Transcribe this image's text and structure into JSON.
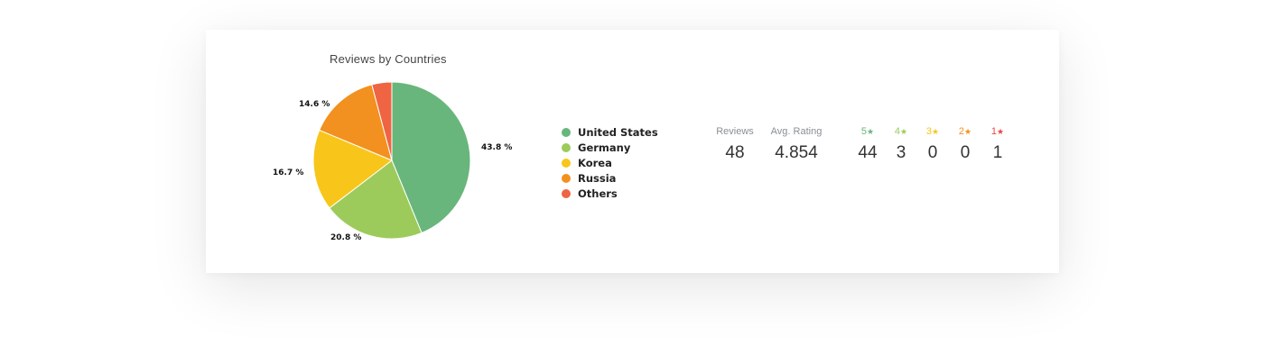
{
  "chart_data": {
    "type": "pie",
    "title": "Reviews by Countries",
    "slices": [
      {
        "name": "United States",
        "value": 43.8,
        "label": "43.8 %",
        "color": "#68b67b"
      },
      {
        "name": "Germany",
        "value": 20.8,
        "label": "20.8 %",
        "color": "#9ccb5b"
      },
      {
        "name": "Korea",
        "value": 16.7,
        "label": "16.7 %",
        "color": "#f8c61a"
      },
      {
        "name": "Russia",
        "value": 14.6,
        "label": "14.6 %",
        "color": "#f2911f"
      },
      {
        "name": "Others",
        "value": 4.1,
        "label": "",
        "color": "#ef6443"
      }
    ],
    "legend_placement": "right"
  },
  "stats": {
    "reviews": {
      "label": "Reviews",
      "value": "48"
    },
    "avg_rating": {
      "label": "Avg. Rating",
      "value": "4.854"
    },
    "star_breakdown": [
      {
        "label": "5",
        "value": "44",
        "color": "#68b67b"
      },
      {
        "label": "4",
        "value": "3",
        "color": "#9ccb5b"
      },
      {
        "label": "3",
        "value": "0",
        "color": "#f8c61a"
      },
      {
        "label": "2",
        "value": "0",
        "color": "#f2911f"
      },
      {
        "label": "1",
        "value": "1",
        "color": "#e8474a"
      }
    ],
    "star_glyph": "★"
  }
}
